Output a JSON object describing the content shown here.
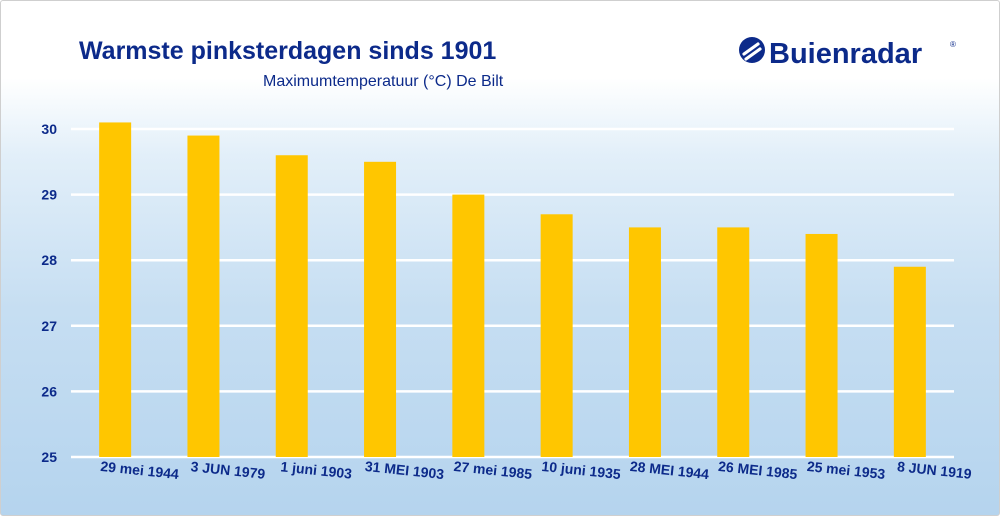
{
  "header": {
    "title": "Warmste pinksterdagen sinds 1901",
    "subtitle": "Maximumtemperatuur (°C) De Bilt"
  },
  "logo": {
    "text": "Buienradar",
    "registered_mark": "®",
    "icon": "buienradar-logo-icon"
  },
  "colors": {
    "bar": "#ffc600",
    "text": "#0c2a8a",
    "grid": "#ffffff"
  },
  "chart_data": {
    "type": "bar",
    "title": "Warmste pinksterdagen sinds 1901",
    "subtitle": "Maximumtemperatuur (°C) De Bilt",
    "categories": [
      "29 mei 1944",
      "3 JUN 1979",
      "1 juni 1903",
      "31 MEI 1903",
      "27 mei 1985",
      "10 juni 1935",
      "28 MEI 1944",
      "26 MEI 1985",
      "25 mei 1953",
      "8 JUN 1919"
    ],
    "values": [
      30.1,
      29.9,
      29.6,
      29.5,
      29.0,
      28.7,
      28.5,
      28.5,
      28.4,
      27.9
    ],
    "ylim": [
      25,
      30
    ],
    "yticks": [
      25,
      26,
      27,
      28,
      29,
      30
    ],
    "grid": true,
    "legend": "none"
  }
}
